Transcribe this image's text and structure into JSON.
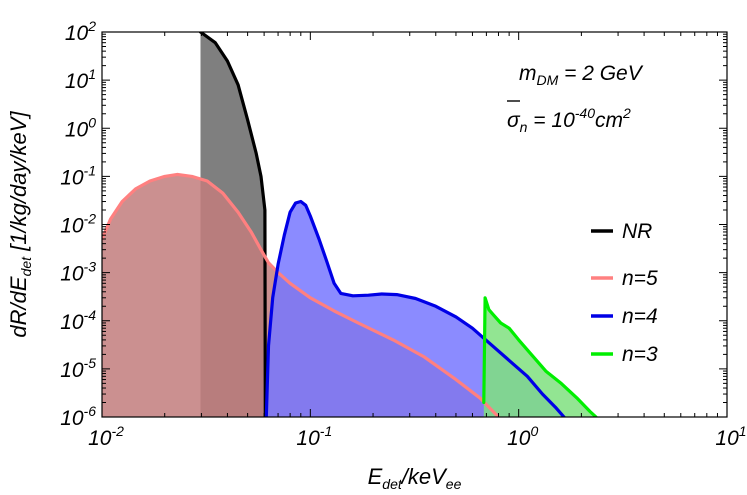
{
  "chart_data": {
    "type": "area",
    "x_scale": "log",
    "y_scale": "log",
    "xlim": [
      0.01,
      10
    ],
    "ylim": [
      1e-06,
      100
    ],
    "x_ticks": [
      {
        "value": 0.01,
        "base": "10",
        "exp": "-2"
      },
      {
        "value": 0.1,
        "base": "10",
        "exp": "-1"
      },
      {
        "value": 1,
        "base": "10",
        "exp": "0"
      },
      {
        "value": 10,
        "base": "10",
        "exp": "1"
      }
    ],
    "y_ticks": [
      {
        "value": 1e-06,
        "base": "10",
        "exp": "-6"
      },
      {
        "value": 1e-05,
        "base": "10",
        "exp": "-5"
      },
      {
        "value": 0.0001,
        "base": "10",
        "exp": "-4"
      },
      {
        "value": 0.001,
        "base": "10",
        "exp": "-3"
      },
      {
        "value": 0.01,
        "base": "10",
        "exp": "-2"
      },
      {
        "value": 0.1,
        "base": "10",
        "exp": "-1"
      },
      {
        "value": 1,
        "base": "10",
        "exp": "0"
      },
      {
        "value": 10,
        "base": "10",
        "exp": "1"
      },
      {
        "value": 100,
        "base": "10",
        "exp": "2"
      }
    ],
    "xlabel": {
      "main": "E",
      "sub1": "det",
      "mid": "/keV",
      "sub2": "ee"
    },
    "ylabel": {
      "p1": "dR/dE",
      "sub": "det",
      "p2": " [1/kg/day/keV]"
    },
    "annotations": [
      {
        "text_main": "m",
        "text_sub": "DM",
        "text_rest": " = 2 GeV"
      },
      {
        "text_main": "σ",
        "text_sub": "n",
        "text_rest": " = 10",
        "text_sup": "-40",
        "text_tail": "cm",
        "text_sup2": "2"
      }
    ],
    "legend_position": "right",
    "grid": false,
    "series": [
      {
        "name": "NR",
        "color": "#000000",
        "fill": "#7f7f7f",
        "points": [
          [
            0.0297,
            100
          ],
          [
            0.035,
            60
          ],
          [
            0.04,
            25
          ],
          [
            0.045,
            8
          ],
          [
            0.05,
            1.5
          ],
          [
            0.055,
            0.3
          ],
          [
            0.058,
            0.1
          ],
          [
            0.0605,
            0.02
          ],
          [
            0.0608,
            1e-06
          ]
        ]
      },
      {
        "name": "n=5",
        "color": "#ff8080",
        "fill": "#c27c7c",
        "points": [
          [
            0.01,
            0.005
          ],
          [
            0.011,
            0.013
          ],
          [
            0.0125,
            0.03
          ],
          [
            0.0145,
            0.055
          ],
          [
            0.017,
            0.08
          ],
          [
            0.02,
            0.1
          ],
          [
            0.023,
            0.11
          ],
          [
            0.027,
            0.1
          ],
          [
            0.032,
            0.08
          ],
          [
            0.038,
            0.045
          ],
          [
            0.045,
            0.018
          ],
          [
            0.052,
            0.007
          ],
          [
            0.058,
            0.003
          ],
          [
            0.063,
            0.0016
          ],
          [
            0.07,
            0.001
          ],
          [
            0.08,
            0.0006
          ],
          [
            0.1,
            0.0003
          ],
          [
            0.13,
            0.00016
          ],
          [
            0.17,
            9e-05
          ],
          [
            0.25,
            4e-05
          ],
          [
            0.35,
            1.8e-05
          ],
          [
            0.5,
            6e-06
          ],
          [
            0.65,
            2.5e-06
          ],
          [
            0.8,
            1e-06
          ]
        ]
      },
      {
        "name": "n=4",
        "color": "#0000e6",
        "fill": "#7777ff",
        "points": [
          [
            0.0615,
            1e-06
          ],
          [
            0.063,
            3e-05
          ],
          [
            0.066,
            0.0003
          ],
          [
            0.07,
            0.0015
          ],
          [
            0.075,
            0.006
          ],
          [
            0.08,
            0.018
          ],
          [
            0.085,
            0.028
          ],
          [
            0.09,
            0.03
          ],
          [
            0.095,
            0.025
          ],
          [
            0.1,
            0.015
          ],
          [
            0.11,
            0.005
          ],
          [
            0.12,
            0.0017
          ],
          [
            0.13,
            0.0006
          ],
          [
            0.14,
            0.00037
          ],
          [
            0.16,
            0.00033
          ],
          [
            0.19,
            0.00034
          ],
          [
            0.22,
            0.00036
          ],
          [
            0.26,
            0.00035
          ],
          [
            0.32,
            0.00029
          ],
          [
            0.4,
            0.0002
          ],
          [
            0.5,
            0.00012
          ],
          [
            0.6,
            7e-05
          ],
          [
            0.75,
            3e-05
          ],
          [
            0.9,
            1.5e-05
          ],
          [
            1.1,
            7e-06
          ],
          [
            1.3,
            3e-06
          ],
          [
            1.5,
            1.6e-06
          ],
          [
            1.65,
            1e-06
          ]
        ]
      },
      {
        "name": "n=3",
        "color": "#00ee00",
        "fill": "#7fe07f",
        "points": [
          [
            0.68,
            2e-06
          ],
          [
            0.69,
            0.0003
          ],
          [
            0.72,
            0.00017
          ],
          [
            0.76,
            0.00013
          ],
          [
            0.82,
            9e-05
          ],
          [
            0.9,
            7e-05
          ],
          [
            1.0,
            4e-05
          ],
          [
            1.15,
            2e-05
          ],
          [
            1.35,
            9e-06
          ],
          [
            1.6,
            5e-06
          ],
          [
            1.9,
            2.5e-06
          ],
          [
            2.2,
            1.3e-06
          ],
          [
            2.35,
            1e-06
          ]
        ]
      }
    ]
  }
}
